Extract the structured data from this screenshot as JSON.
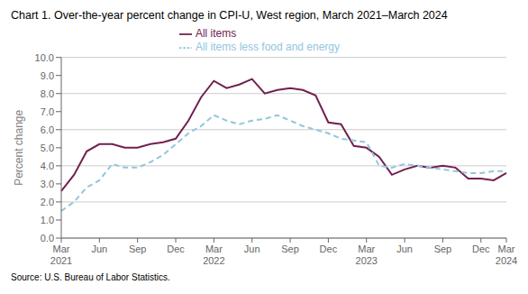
{
  "chart_data": {
    "type": "line",
    "title": "Chart 1. Over-the-year percent change in CPI-U, West region, March 2021–March 2024",
    "y_label": "Percent change",
    "annotations": [
      "Source: U.S. Bureau of Labor Statistics."
    ],
    "categories": [
      "Mar 2021",
      null,
      null,
      "Jun",
      null,
      null,
      "Sep",
      null,
      null,
      "Dec",
      null,
      null,
      "Mar 2022",
      null,
      null,
      "Jun",
      null,
      null,
      "Sep",
      null,
      null,
      "Dec",
      null,
      null,
      "Mar 2023",
      null,
      null,
      "Jun",
      null,
      null,
      "Sep",
      null,
      null,
      "Dec",
      null,
      "Mar 2024"
    ],
    "series": [
      {
        "name": "All items",
        "color": "#722050",
        "line_style": "solid",
        "values": [
          2.6,
          3.5,
          4.8,
          5.2,
          5.2,
          5.0,
          5.0,
          5.2,
          5.3,
          5.5,
          6.5,
          7.8,
          8.7,
          8.3,
          8.5,
          8.8,
          8.0,
          8.2,
          8.3,
          8.2,
          7.9,
          6.4,
          6.3,
          5.1,
          5.0,
          4.5,
          3.5,
          3.8,
          4.0,
          3.9,
          4.0,
          3.9,
          3.3,
          3.3,
          3.2,
          3.6
        ]
      },
      {
        "name": "All items less food and energy",
        "color": "#92c5de",
        "line_style": "dashed",
        "values": [
          1.5,
          2.0,
          2.8,
          3.2,
          4.1,
          3.9,
          3.9,
          4.2,
          4.6,
          5.2,
          5.8,
          6.2,
          6.8,
          6.5,
          6.3,
          6.5,
          6.6,
          6.8,
          6.5,
          6.2,
          6.0,
          5.8,
          5.5,
          5.4,
          5.3,
          4.0,
          3.9,
          4.1,
          4.0,
          3.9,
          3.8,
          3.7,
          3.6,
          3.6,
          3.7,
          3.7
        ]
      }
    ],
    "ylim": [
      0.0,
      10.0
    ],
    "yticks": [
      {
        "value": 0,
        "label": "0.0"
      },
      {
        "value": 1,
        "label": "1.0"
      },
      {
        "value": 2,
        "label": "2.0"
      },
      {
        "value": 3,
        "label": "3.0"
      },
      {
        "value": 4,
        "label": "4.0"
      },
      {
        "value": 5,
        "label": "5.0"
      },
      {
        "value": 6,
        "label": "6.0"
      },
      {
        "value": 7,
        "label": "7.0"
      },
      {
        "value": 8,
        "label": "8.0"
      },
      {
        "value": 9,
        "label": "9.0"
      },
      {
        "value": 10,
        "label": "10.0"
      }
    ],
    "grid": true,
    "legend": "top"
  }
}
